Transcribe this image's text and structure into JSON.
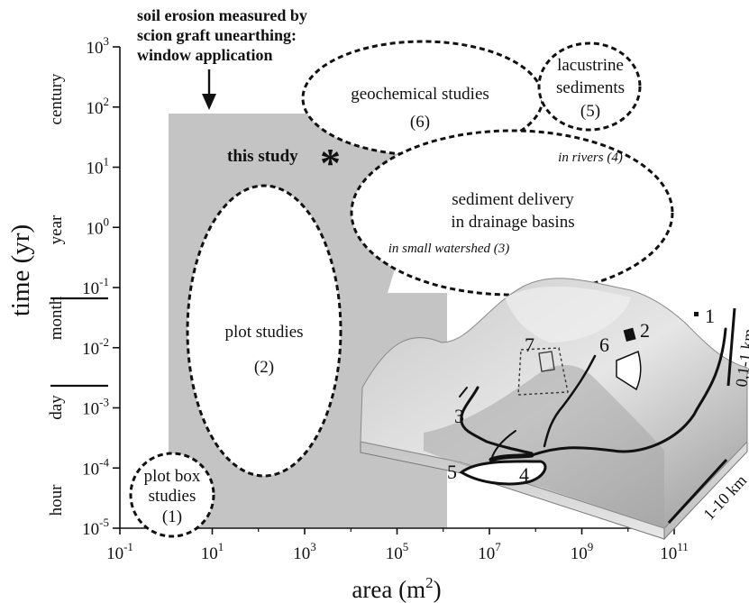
{
  "chart_data": {
    "type": "diagram",
    "xlabel_main": "area (m",
    "xlabel_sup": "2",
    "xlabel_close": ")",
    "ylabel": "time (yr)",
    "x_axis": {
      "scale": "log10",
      "range": [
        -1,
        11
      ],
      "ticks": [
        {
          "base": "10",
          "exp": "-1"
        },
        {
          "base": "10",
          "exp": "1"
        },
        {
          "base": "10",
          "exp": "3"
        },
        {
          "base": "10",
          "exp": "5"
        },
        {
          "base": "10",
          "exp": "7"
        },
        {
          "base": "10",
          "exp": "9"
        },
        {
          "base": "10",
          "exp": "11"
        }
      ]
    },
    "y_axis": {
      "scale": "log10",
      "range": [
        -5,
        3
      ],
      "ticks": [
        {
          "base": "10",
          "exp": "-5"
        },
        {
          "base": "10",
          "exp": "-4"
        },
        {
          "base": "10",
          "exp": "-3"
        },
        {
          "base": "10",
          "exp": "-2"
        },
        {
          "base": "10",
          "exp": "-1"
        },
        {
          "base": "10",
          "exp": "0"
        },
        {
          "base": "10",
          "exp": "1"
        },
        {
          "base": "10",
          "exp": "2"
        },
        {
          "base": "10",
          "exp": "3"
        }
      ]
    },
    "time_units": [
      "hour",
      "day",
      "month",
      "year",
      "century"
    ],
    "shaded_region": {
      "label_lines": [
        "soil erosion measured by",
        "scion graft unearthing:",
        "window application"
      ]
    },
    "this_study": {
      "label": "this study",
      "marker": "*"
    },
    "regions": [
      {
        "lines": [
          "plot box",
          "studies",
          "(1)"
        ]
      },
      {
        "lines": [
          "plot studies",
          "(2)"
        ]
      },
      {
        "lines": [
          "geochemical studies",
          "(6)"
        ]
      },
      {
        "lines": [
          "lacustrine",
          "sediments",
          "(5)"
        ]
      },
      {
        "lines": [
          "sediment delivery",
          "in drainage basins"
        ],
        "sub": [
          "in rivers (4)",
          "in small watershed (3)"
        ]
      }
    ],
    "landscape": {
      "site_numbers": [
        "1",
        "2",
        "3",
        "4",
        "5",
        "6",
        "7"
      ],
      "scale_bars": [
        "0,1-1 km",
        "1-10 km"
      ]
    }
  }
}
